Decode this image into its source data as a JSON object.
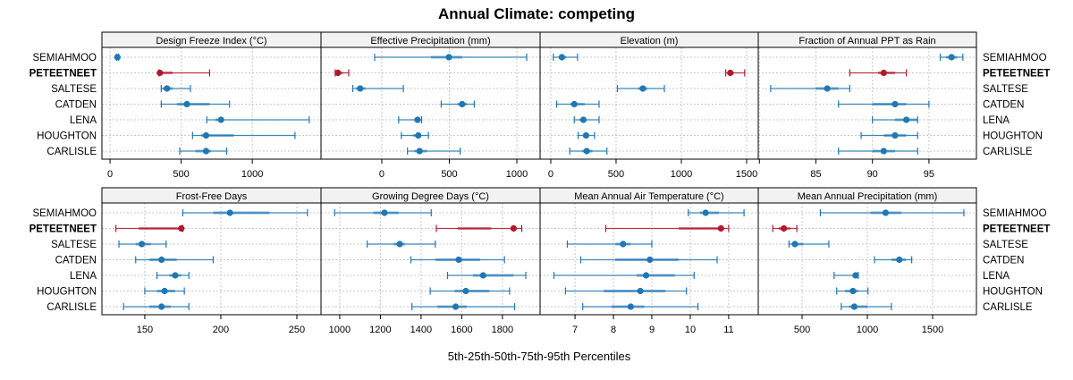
{
  "chart_data": {
    "type": "dot-interval",
    "title": "Annual Climate: competing",
    "xlabel": "5th-25th-50th-75th-95th Percentiles",
    "sites": [
      "SEMIAHMOO",
      "PETEETNEET",
      "SALTESE",
      "CATDEN",
      "LENA",
      "HOUGHTON",
      "CARLISLE"
    ],
    "highlight_site": "PETEETNEET",
    "colors": {
      "default": "#1f77b4",
      "highlight": "#b2182b",
      "strip": "#f2f2f2",
      "grid": "#c8c8c8"
    },
    "grid": true,
    "panels": [
      {
        "name": "Design Freeze Index (°C)",
        "xlim": [
          -57,
          1483
        ],
        "ticks": [
          0,
          500,
          1000
        ],
        "tick_labels": [
          "0",
          "500",
          "1000"
        ],
        "tick_side": "bottom",
        "data": [
          [
            45,
            48,
            52,
            56,
            60
          ],
          [
            345,
            345,
            350,
            440,
            700
          ],
          [
            360,
            370,
            400,
            440,
            565
          ],
          [
            360,
            470,
            540,
            700,
            840
          ],
          [
            680,
            740,
            780,
            800,
            1400
          ],
          [
            580,
            640,
            675,
            870,
            1300
          ],
          [
            490,
            600,
            675,
            710,
            820
          ]
        ]
      },
      {
        "name": "Effective Precipitation (mm)",
        "xlim": [
          -450,
          1172
        ],
        "ticks": [
          0,
          500,
          1000
        ],
        "tick_labels": [
          "0",
          "500",
          "1000"
        ],
        "tick_side": "bottom",
        "data": [
          [
            -53,
            364,
            497,
            596,
            1073
          ],
          [
            -345,
            -330,
            -325,
            -290,
            -245
          ],
          [
            -215,
            -190,
            -160,
            -120,
            160
          ],
          [
            440,
            560,
            595,
            630,
            685
          ],
          [
            125,
            240,
            265,
            280,
            295
          ],
          [
            145,
            230,
            270,
            290,
            345
          ],
          [
            190,
            240,
            280,
            335,
            580
          ]
        ]
      },
      {
        "name": "Elevation (m)",
        "xlim": [
          -82,
          1589
        ],
        "ticks": [
          0,
          500,
          1000,
          1500
        ],
        "tick_labels": [
          "0",
          "500",
          "1000",
          "1500"
        ],
        "tick_side": "bottom",
        "data": [
          [
            20,
            60,
            85,
            120,
            205
          ],
          [
            1340,
            1360,
            1375,
            1400,
            1485
          ],
          [
            510,
            670,
            705,
            740,
            870
          ],
          [
            45,
            150,
            180,
            260,
            370
          ],
          [
            180,
            220,
            250,
            270,
            370
          ],
          [
            210,
            250,
            270,
            290,
            335
          ],
          [
            145,
            240,
            275,
            320,
            430
          ]
        ]
      },
      {
        "name": "Fraction of Annual PPT as Rain",
        "xlim": [
          79.9,
          99.2
        ],
        "ticks": [
          80,
          85,
          90,
          95
        ],
        "tick_labels": [
          "",
          "85",
          "90",
          "95"
        ],
        "tick_side": "bottom",
        "data": [
          [
            96,
            96.5,
            97,
            97.5,
            98
          ],
          [
            88,
            90.5,
            91,
            92,
            93
          ],
          [
            81,
            85,
            86,
            87,
            88
          ],
          [
            87,
            90,
            92,
            93,
            95
          ],
          [
            90,
            92,
            93,
            94,
            94
          ],
          [
            89,
            91,
            92,
            93,
            94
          ],
          [
            87,
            90,
            91,
            92,
            94
          ]
        ]
      },
      {
        "name": "Frost-Free Days",
        "xlim": [
          121.8,
          265.9
        ],
        "ticks": [
          150,
          200,
          250
        ],
        "tick_labels": [
          "150",
          "200",
          "250"
        ],
        "tick_side": "bottom",
        "data": [
          [
            175,
            195,
            206,
            232,
            257
          ],
          [
            131,
            146,
            174,
            175,
            175
          ],
          [
            133,
            144,
            148,
            154,
            164
          ],
          [
            144,
            153,
            161,
            171,
            195
          ],
          [
            158,
            166,
            170,
            174,
            179
          ],
          [
            150,
            158,
            163,
            170,
            176
          ],
          [
            136,
            153,
            161,
            167,
            179
          ]
        ]
      },
      {
        "name": "Growing Degree Days (°C)",
        "xlim": [
          908,
          1985
        ],
        "ticks": [
          1000,
          1200,
          1400,
          1600,
          1800
        ],
        "tick_labels": [
          "1000",
          "1200",
          "1400",
          "1600",
          "1800"
        ],
        "tick_side": "bottom",
        "data": [
          [
            975,
            1165,
            1220,
            1290,
            1450
          ],
          [
            1475,
            1580,
            1855,
            1745,
            1895
          ],
          [
            1135,
            1265,
            1295,
            1320,
            1470
          ],
          [
            1350,
            1470,
            1585,
            1690,
            1810
          ],
          [
            1530,
            1655,
            1705,
            1855,
            1915
          ],
          [
            1445,
            1565,
            1620,
            1735,
            1835
          ],
          [
            1355,
            1480,
            1570,
            1625,
            1860
          ]
        ]
      },
      {
        "name": "Mean Annual Air Temperature (°C)",
        "xlim": [
          6.09,
          11.77
        ],
        "ticks": [
          7,
          8,
          9,
          10,
          11
        ],
        "tick_labels": [
          "7",
          "8",
          "9",
          "10",
          "11"
        ],
        "tick_side": "bottom",
        "data": [
          [
            9.95,
            10.25,
            10.4,
            10.75,
            11.4
          ],
          [
            7.8,
            9.7,
            10.8,
            10.85,
            11.0
          ],
          [
            6.8,
            8.05,
            8.25,
            8.45,
            9.0
          ],
          [
            7.15,
            8.05,
            8.95,
            9.7,
            10.7
          ],
          [
            6.45,
            8.6,
            8.85,
            9.6,
            10.1
          ],
          [
            6.75,
            7.75,
            8.7,
            9.35,
            9.9
          ],
          [
            7.2,
            7.95,
            8.45,
            8.8,
            10.2
          ]
        ]
      },
      {
        "name": "Mean Annual Precipitation (mm)",
        "xlim": [
          164,
          1836
        ],
        "ticks": [
          500,
          1000,
          1500
        ],
        "tick_labels": [
          "500",
          "1000",
          "1500"
        ],
        "tick_side": "bottom",
        "data": [
          [
            640,
            1025,
            1140,
            1260,
            1740
          ],
          [
            275,
            320,
            360,
            410,
            460
          ],
          [
            400,
            420,
            445,
            510,
            705
          ],
          [
            1055,
            1185,
            1245,
            1295,
            1340
          ],
          [
            745,
            900,
            910,
            925,
            930
          ],
          [
            765,
            830,
            890,
            930,
            1005
          ],
          [
            800,
            860,
            900,
            1000,
            1185
          ]
        ]
      }
    ]
  }
}
